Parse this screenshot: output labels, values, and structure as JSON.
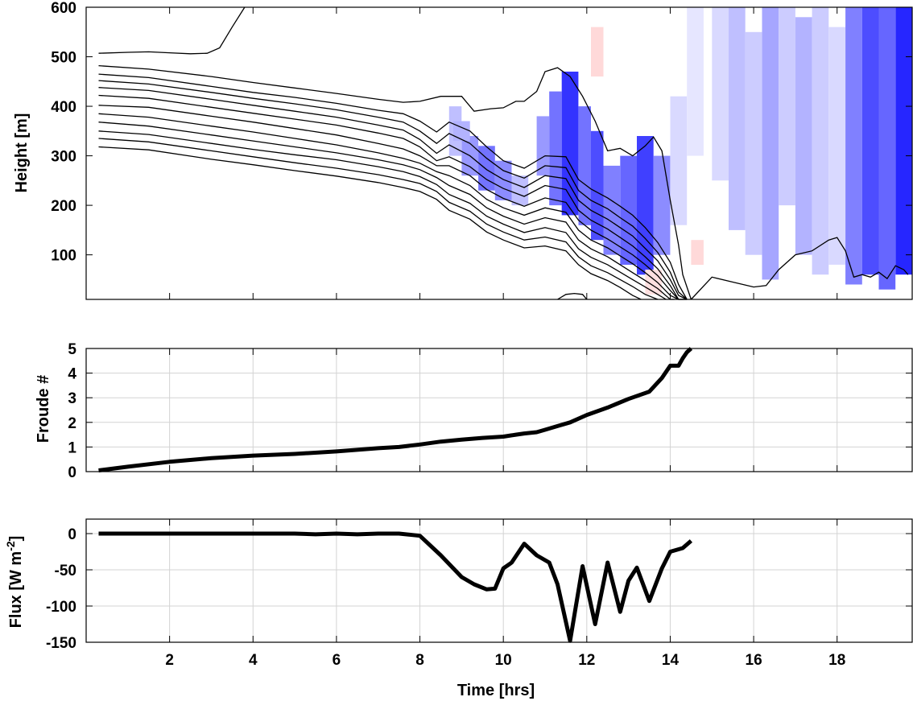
{
  "chart_data": [
    {
      "type": "heatmap",
      "ylabel": "Height [m]",
      "xlim": [
        0,
        19.8
      ],
      "ylim": [
        10,
        600
      ],
      "yticks": [
        100,
        200,
        300,
        400,
        500,
        600
      ],
      "xticks": [
        2,
        4,
        6,
        8,
        10,
        12,
        14,
        16,
        18
      ],
      "contour_color": "#000000",
      "shading_colors": {
        "negative": "#0000ff",
        "positive": "#ff0000"
      },
      "contours": [
        {
          "x": [
            0.3,
            1.0,
            1.5,
            2.0,
            2.5,
            2.9,
            3.2,
            3.5,
            3.8
          ],
          "y": [
            507,
            509,
            510,
            508,
            506,
            507,
            518,
            560,
            600
          ]
        },
        {
          "x": [
            0.3,
            1.5,
            3,
            4,
            5,
            6,
            7,
            7.6,
            8,
            8.5,
            9,
            9.3,
            9.7,
            10,
            10.3,
            10.5,
            10.8,
            11,
            11.3,
            11.6,
            11.9,
            12.2,
            12.5,
            12.8,
            13.1,
            13.4,
            13.6,
            13.8,
            14.0,
            14.2,
            14.3,
            14.5
          ],
          "y": [
            482,
            475,
            460,
            448,
            437,
            426,
            414,
            408,
            410,
            420,
            420,
            390,
            395,
            397,
            410,
            410,
            430,
            470,
            478,
            460,
            420,
            370,
            310,
            315,
            300,
            320,
            338,
            310,
            210,
            120,
            60,
            5
          ]
        },
        {
          "x": [
            0.3,
            1.5,
            3,
            4,
            5,
            6,
            7,
            7.6,
            8,
            8.4,
            8.7,
            9.2,
            9.6,
            10,
            10.5,
            11,
            11.5,
            11.8,
            12.1,
            12.5,
            12.8,
            13.1,
            13.4,
            13.7,
            14.0,
            14.2,
            14.4
          ],
          "y": [
            465,
            458,
            440,
            428,
            418,
            406,
            392,
            385,
            370,
            348,
            368,
            350,
            318,
            290,
            275,
            300,
            298,
            252,
            233,
            215,
            198,
            180,
            155,
            125,
            85,
            40,
            5
          ]
        },
        {
          "x": [
            0.3,
            1.5,
            3,
            4,
            5,
            6,
            7,
            7.6,
            8,
            8.4,
            8.7,
            9.2,
            9.6,
            10,
            10.5,
            11,
            11.5,
            11.8,
            12.1,
            12.5,
            12.8,
            13.1,
            13.4,
            13.7,
            14.0,
            14.2,
            14.4
          ],
          "y": [
            452,
            445,
            428,
            416,
            405,
            393,
            378,
            368,
            350,
            325,
            345,
            325,
            295,
            270,
            255,
            280,
            276,
            230,
            210,
            193,
            175,
            158,
            133,
            105,
            65,
            25,
            5
          ]
        },
        {
          "x": [
            0.3,
            1.5,
            3,
            4,
            5,
            6,
            7,
            7.6,
            8,
            8.4,
            8.7,
            9.2,
            9.6,
            10,
            10.5,
            11,
            11.5,
            11.8,
            12.1,
            12.5,
            12.8,
            13.1,
            13.4,
            13.7,
            14.0,
            14.2,
            14.4
          ],
          "y": [
            438,
            432,
            414,
            402,
            390,
            378,
            362,
            352,
            333,
            305,
            322,
            300,
            272,
            252,
            236,
            260,
            254,
            210,
            190,
            172,
            155,
            138,
            113,
            88,
            50,
            18,
            5
          ]
        },
        {
          "x": [
            0.3,
            1.5,
            3,
            4,
            5,
            6,
            7,
            7.6,
            8,
            8.4,
            8.7,
            9.2,
            9.6,
            10,
            10.5,
            11,
            11.5,
            11.8,
            12.1,
            12.5,
            12.8,
            13.1,
            13.4,
            13.7,
            14.0,
            14.2,
            14.4
          ],
          "y": [
            422,
            416,
            398,
            386,
            374,
            362,
            346,
            335,
            318,
            290,
            298,
            278,
            252,
            234,
            218,
            240,
            232,
            190,
            170,
            152,
            135,
            118,
            96,
            72,
            38,
            10,
            5
          ]
        },
        {
          "x": [
            0.3,
            1.5,
            3,
            4,
            5,
            6,
            7,
            7.6,
            8,
            8.4,
            8.7,
            9.2,
            9.6,
            10,
            10.5,
            11,
            11.5,
            11.8,
            12.1,
            12.5,
            12.8,
            13.1,
            13.4,
            13.7,
            14.0,
            14.2,
            14.4
          ],
          "y": [
            402,
            398,
            380,
            368,
            355,
            342,
            325,
            314,
            300,
            280,
            280,
            260,
            232,
            214,
            198,
            215,
            206,
            170,
            150,
            132,
            116,
            100,
            80,
            58,
            28,
            6,
            5
          ]
        },
        {
          "x": [
            0.3,
            1.5,
            3,
            4,
            5,
            6,
            7,
            7.6,
            8,
            8.4,
            8.7,
            9.2,
            9.6,
            10,
            10.5,
            11,
            11.5,
            11.8,
            12.1,
            12.5,
            12.8,
            13.1,
            13.4,
            13.7,
            14.0,
            14.2
          ],
          "y": [
            385,
            378,
            360,
            348,
            335,
            322,
            306,
            295,
            285,
            268,
            260,
            240,
            212,
            195,
            180,
            195,
            186,
            150,
            130,
            114,
            98,
            82,
            64,
            44,
            18,
            5
          ]
        },
        {
          "x": [
            0.3,
            1.5,
            3,
            4,
            5,
            6,
            7,
            7.6,
            8,
            8.4,
            8.7,
            9.2,
            9.6,
            10,
            10.5,
            11,
            11.5,
            11.8,
            12.1,
            12.5,
            12.8,
            13.1,
            13.4,
            13.7,
            14.0,
            14.1
          ],
          "y": [
            368,
            360,
            342,
            330,
            318,
            306,
            292,
            282,
            272,
            256,
            240,
            222,
            195,
            178,
            162,
            175,
            166,
            130,
            112,
            96,
            80,
            64,
            48,
            32,
            10,
            5
          ]
        },
        {
          "x": [
            0.3,
            1.5,
            3,
            4,
            5,
            6,
            7,
            7.6,
            8,
            8.4,
            8.7,
            9.2,
            9.6,
            10,
            10.5,
            11,
            11.5,
            11.8,
            12.1,
            12.5,
            12.8,
            13.1,
            13.4,
            13.7,
            13.9
          ],
          "y": [
            350,
            343,
            325,
            313,
            302,
            292,
            278,
            268,
            258,
            242,
            222,
            204,
            178,
            162,
            145,
            155,
            145,
            112,
            95,
            80,
            65,
            50,
            35,
            20,
            5
          ]
        },
        {
          "x": [
            0.3,
            1.5,
            3,
            4,
            5,
            6,
            7,
            7.6,
            8,
            8.4,
            8.7,
            9.2,
            9.6,
            10,
            10.5,
            11,
            11.5,
            11.8,
            12.1,
            12.5,
            12.8,
            13.1,
            13.4,
            13.7
          ],
          "y": [
            335,
            328,
            310,
            298,
            286,
            275,
            262,
            252,
            244,
            228,
            206,
            188,
            162,
            146,
            130,
            136,
            126,
            96,
            78,
            64,
            50,
            36,
            20,
            5
          ]
        },
        {
          "x": [
            0.3,
            1.5,
            3,
            4,
            5,
            6,
            7,
            7.6,
            8,
            8.4,
            8.7,
            9.2,
            9.6,
            10,
            10.5,
            11,
            11.5,
            11.8,
            12.1,
            12.5,
            12.8,
            13.1,
            13.3
          ],
          "y": [
            318,
            312,
            293,
            282,
            270,
            259,
            246,
            236,
            228,
            212,
            190,
            172,
            146,
            130,
            114,
            118,
            108,
            80,
            62,
            48,
            34,
            18,
            5
          ]
        },
        {
          "x": [
            14.5,
            15.0,
            15.5,
            16.0,
            16.3,
            16.6,
            17.0,
            17.4,
            17.8,
            18.0,
            18.2,
            18.4,
            18.6,
            18.8,
            19.0,
            19.2,
            19.4,
            19.6,
            19.7
          ],
          "y": [
            5,
            55,
            45,
            35,
            38,
            70,
            100,
            108,
            130,
            135,
            108,
            55,
            60,
            55,
            65,
            52,
            78,
            70,
            60
          ]
        },
        {
          "x": [
            11.3,
            11.5,
            11.7,
            11.9,
            12.0
          ],
          "y": [
            10,
            20,
            22,
            20,
            8
          ]
        }
      ],
      "cells": [
        {
          "t0": 8.7,
          "t1": 9.0,
          "h0": 300,
          "h1": 400,
          "v": -0.25
        },
        {
          "t0": 9.0,
          "t1": 9.4,
          "h0": 260,
          "h1": 340,
          "v": -0.4
        },
        {
          "t0": 9.4,
          "t1": 9.8,
          "h0": 230,
          "h1": 320,
          "v": -0.55
        },
        {
          "t0": 9.8,
          "t1": 10.2,
          "h0": 210,
          "h1": 290,
          "v": -0.45
        },
        {
          "t0": 10.2,
          "t1": 10.6,
          "h0": 200,
          "h1": 260,
          "v": -0.25
        },
        {
          "t0": 8.8,
          "t1": 9.2,
          "h0": 330,
          "h1": 370,
          "v": -0.3
        },
        {
          "t0": 10.8,
          "t1": 11.1,
          "h0": 260,
          "h1": 380,
          "v": -0.4
        },
        {
          "t0": 11.1,
          "t1": 11.4,
          "h0": 200,
          "h1": 430,
          "v": -0.55
        },
        {
          "t0": 11.4,
          "t1": 11.8,
          "h0": 180,
          "h1": 470,
          "v": -0.8
        },
        {
          "t0": 11.8,
          "t1": 12.1,
          "h0": 160,
          "h1": 400,
          "v": -0.55
        },
        {
          "t0": 12.1,
          "t1": 12.4,
          "h0": 130,
          "h1": 350,
          "v": -0.7
        },
        {
          "t0": 12.4,
          "t1": 12.8,
          "h0": 100,
          "h1": 280,
          "v": -0.5
        },
        {
          "t0": 12.8,
          "t1": 13.2,
          "h0": 80,
          "h1": 300,
          "v": -0.6
        },
        {
          "t0": 13.2,
          "t1": 13.6,
          "h0": 60,
          "h1": 340,
          "v": -0.75
        },
        {
          "t0": 13.6,
          "t1": 14.0,
          "h0": 100,
          "h1": 300,
          "v": -0.45
        },
        {
          "t0": 14.0,
          "t1": 14.4,
          "h0": 160,
          "h1": 420,
          "v": -0.15
        },
        {
          "t0": 14.4,
          "t1": 14.8,
          "h0": 300,
          "h1": 600,
          "v": -0.1
        },
        {
          "t0": 15.0,
          "t1": 15.4,
          "h0": 250,
          "h1": 600,
          "v": -0.15
        },
        {
          "t0": 15.4,
          "t1": 15.8,
          "h0": 150,
          "h1": 600,
          "v": -0.25
        },
        {
          "t0": 15.8,
          "t1": 16.2,
          "h0": 100,
          "h1": 550,
          "v": -0.2
        },
        {
          "t0": 16.2,
          "t1": 16.6,
          "h0": 50,
          "h1": 600,
          "v": -0.35
        },
        {
          "t0": 16.6,
          "t1": 17.0,
          "h0": 200,
          "h1": 600,
          "v": -0.2
        },
        {
          "t0": 17.0,
          "t1": 17.4,
          "h0": 100,
          "h1": 580,
          "v": -0.3
        },
        {
          "t0": 17.4,
          "t1": 17.8,
          "h0": 60,
          "h1": 600,
          "v": -0.2
        },
        {
          "t0": 17.8,
          "t1": 18.2,
          "h0": 80,
          "h1": 560,
          "v": -0.15
        },
        {
          "t0": 18.2,
          "t1": 18.6,
          "h0": 40,
          "h1": 600,
          "v": -0.5
        },
        {
          "t0": 18.6,
          "t1": 19.0,
          "h0": 60,
          "h1": 600,
          "v": -0.7
        },
        {
          "t0": 19.0,
          "t1": 19.4,
          "h0": 30,
          "h1": 600,
          "v": -0.6
        },
        {
          "t0": 19.4,
          "t1": 19.8,
          "h0": 60,
          "h1": 600,
          "v": -0.85
        },
        {
          "t0": 12.1,
          "t1": 12.4,
          "h0": 460,
          "h1": 560,
          "v": 0.15
        },
        {
          "t0": 14.5,
          "t1": 14.8,
          "h0": 80,
          "h1": 130,
          "v": 0.15
        },
        {
          "t0": 13.4,
          "t1": 13.8,
          "h0": 20,
          "h1": 70,
          "v": 0.12
        }
      ]
    },
    {
      "type": "line",
      "ylabel": "Froude #",
      "xlim": [
        0,
        19.8
      ],
      "ylim": [
        0,
        5
      ],
      "yticks": [
        0,
        1,
        2,
        3,
        4,
        5
      ],
      "xticks": [
        2,
        4,
        6,
        8,
        10,
        12,
        14,
        16,
        18
      ],
      "color": "#000000",
      "x": [
        0.3,
        1,
        2,
        3,
        4,
        5,
        6,
        7,
        7.5,
        8,
        8.5,
        9,
        9.5,
        10,
        10.3,
        10.5,
        10.8,
        11,
        11.3,
        11.6,
        12,
        12.5,
        13,
        13.5,
        13.8,
        14.0,
        14.2,
        14.3,
        14.4,
        14.5
      ],
      "y": [
        0.05,
        0.2,
        0.4,
        0.55,
        0.65,
        0.72,
        0.82,
        0.95,
        1.0,
        1.1,
        1.22,
        1.3,
        1.37,
        1.42,
        1.5,
        1.55,
        1.6,
        1.7,
        1.85,
        2.0,
        2.3,
        2.6,
        2.95,
        3.25,
        3.8,
        4.3,
        4.3,
        4.6,
        4.85,
        5.1
      ]
    },
    {
      "type": "line",
      "ylabel": "Flux [W m",
      "ylabel_sup": "-2",
      "ylabel_end": "]",
      "xlabel": "Time [hrs]",
      "xlim": [
        0,
        19.8
      ],
      "ylim": [
        -150,
        20
      ],
      "yticks": [
        -150,
        -100,
        -50,
        0
      ],
      "xticks": [
        2,
        4,
        6,
        8,
        10,
        12,
        14,
        16,
        18
      ],
      "color": "#000000",
      "x": [
        0.3,
        2,
        4,
        5,
        5.5,
        6,
        6.5,
        7,
        7.5,
        8,
        8.5,
        9,
        9.3,
        9.6,
        9.8,
        10.0,
        10.2,
        10.5,
        10.8,
        11.1,
        11.3,
        11.6,
        11.9,
        12.2,
        12.5,
        12.8,
        13.0,
        13.2,
        13.5,
        13.8,
        14.0,
        14.3,
        14.5
      ],
      "y": [
        0,
        0,
        0,
        0,
        -1,
        0,
        -1,
        0,
        0,
        -3,
        -30,
        -60,
        -70,
        -77,
        -76,
        -48,
        -40,
        -14,
        -30,
        -40,
        -70,
        -148,
        -45,
        -125,
        -40,
        -108,
        -65,
        -47,
        -93,
        -48,
        -25,
        -20,
        -10
      ]
    }
  ]
}
